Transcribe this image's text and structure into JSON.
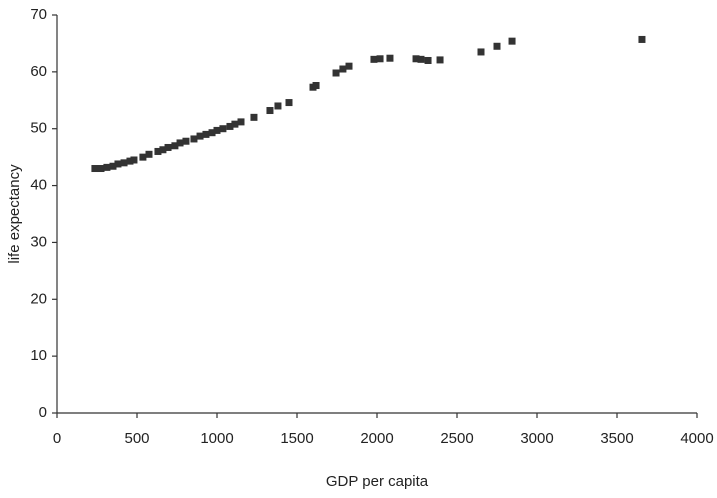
{
  "chart_data": {
    "type": "scatter",
    "x_label": "GDP per capita",
    "y_label": "life expectancy",
    "xlim": [
      0,
      4000
    ],
    "xticks": [
      0,
      500,
      1000,
      1500,
      2000,
      2500,
      3000,
      3500,
      4000
    ],
    "ylim": [
      0,
      70
    ],
    "yticks": [
      0,
      10,
      20,
      30,
      40,
      50,
      60,
      70
    ],
    "grid": false,
    "color": "#333333",
    "x": [
      237,
      275,
      312,
      350,
      381,
      419,
      456,
      481,
      537,
      575,
      631,
      662,
      694,
      737,
      769,
      806,
      856,
      894,
      931,
      969,
      1000,
      1037,
      1081,
      1112,
      1150,
      1231,
      1331,
      1381,
      1450,
      1600,
      1619,
      1744,
      1787,
      1825,
      1981,
      2019,
      2081,
      2244,
      2275,
      2319,
      2394,
      2650,
      2750,
      2844,
      3656
    ],
    "values": [
      43,
      43,
      43.2,
      43.4,
      43.8,
      44,
      44.3,
      44.5,
      45,
      45.5,
      46,
      46.3,
      46.7,
      47,
      47.5,
      47.8,
      48.2,
      48.7,
      49,
      49.3,
      49.7,
      50,
      50.4,
      50.8,
      51.2,
      52,
      53.2,
      54,
      54.6,
      57.3,
      57.6,
      59.8,
      60.5,
      61,
      62.2,
      62.3,
      62.4,
      62.3,
      62.2,
      62,
      62.1,
      63.5,
      64.5,
      65.4,
      65.7
    ]
  }
}
